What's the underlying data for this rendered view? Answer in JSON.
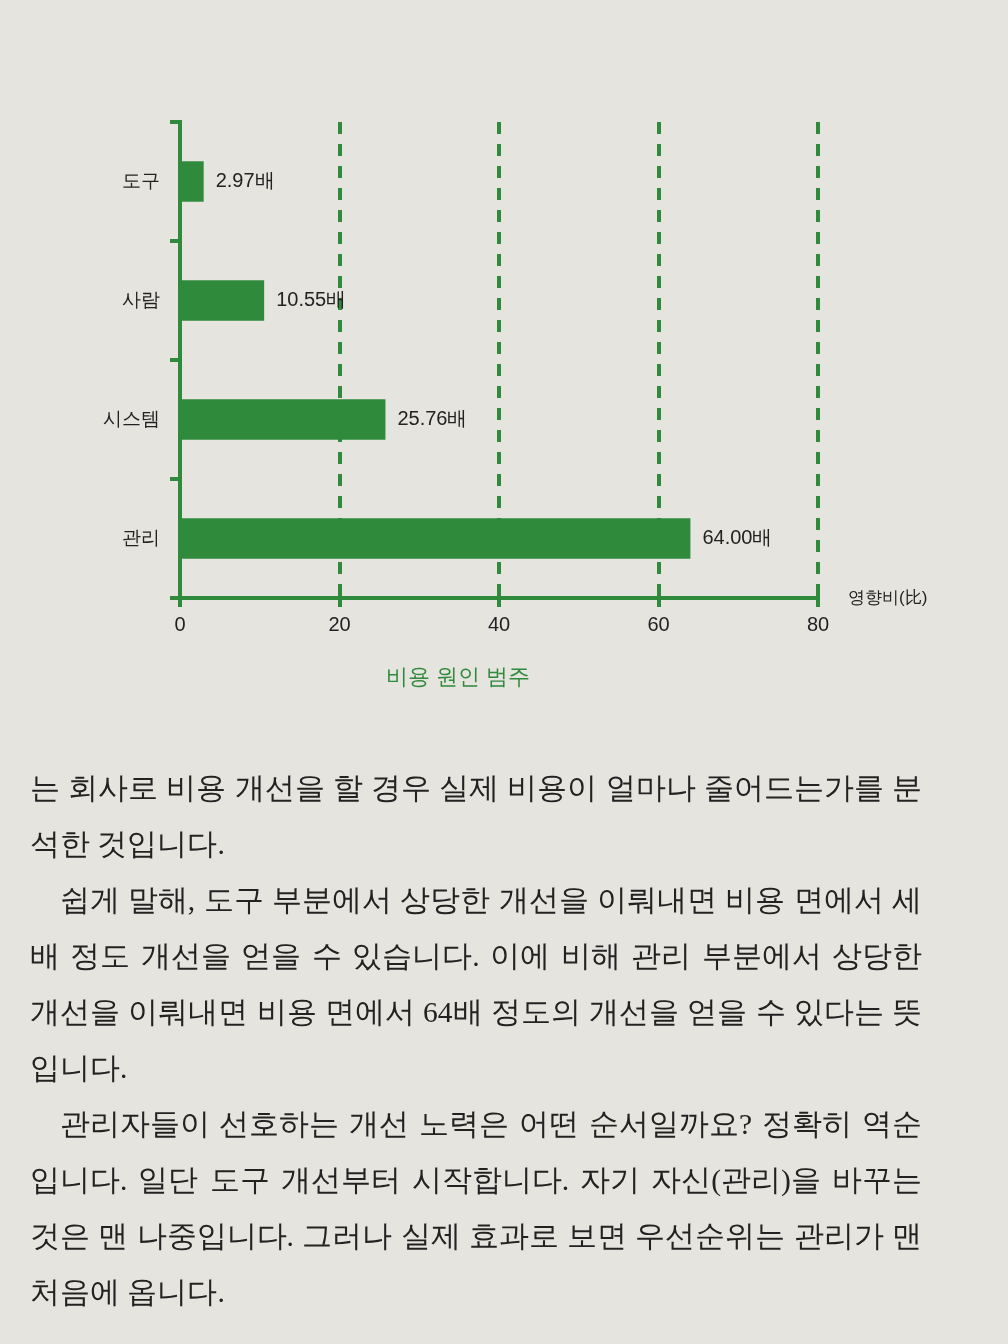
{
  "chart_data": {
    "type": "bar",
    "orientation": "horizontal",
    "title": "비용 원인 범주",
    "categories": [
      "도구",
      "사람",
      "시스템",
      "관리"
    ],
    "values": [
      2.97,
      10.55,
      25.76,
      64.0
    ],
    "value_labels": [
      "2.97배",
      "10.55배",
      "25.76배",
      "64.00배"
    ],
    "color": "#2f8a3c",
    "xlim": [
      0,
      80
    ],
    "xticks": [
      0,
      20,
      40,
      60,
      80
    ],
    "xlabel": "영향비(比)",
    "grid": "x",
    "legend": false,
    "annotations": [
      "는 회사로 비용 개선을 할 경우 실제 비용이 얼마나 줄어드는가를 분석한 것입니다.",
      "쉽게 말해, 도구 부분에서 상당한 개선을 이뤄내면 비용 면에서 세 배 정도 개선을 얻을 수 있습니다. 이에 비해 관리 부분에서 상당한 개선을 이뤄내면 비용 면에서 64배 정도의 개선을 얻을 수 있다는 뜻입니다.",
      "관리자들이 선호하는 개선 노력은 어떤 순서일까요? 정확히 역순입니다. 일단 도구 개선부터 시작합니다. 자기 자신(관리)을 바꾸는 것은 맨 나중입니다. 그러나 실제 효과로 보면 우선순위는 관리가 맨 처음에 옵니다."
    ]
  }
}
